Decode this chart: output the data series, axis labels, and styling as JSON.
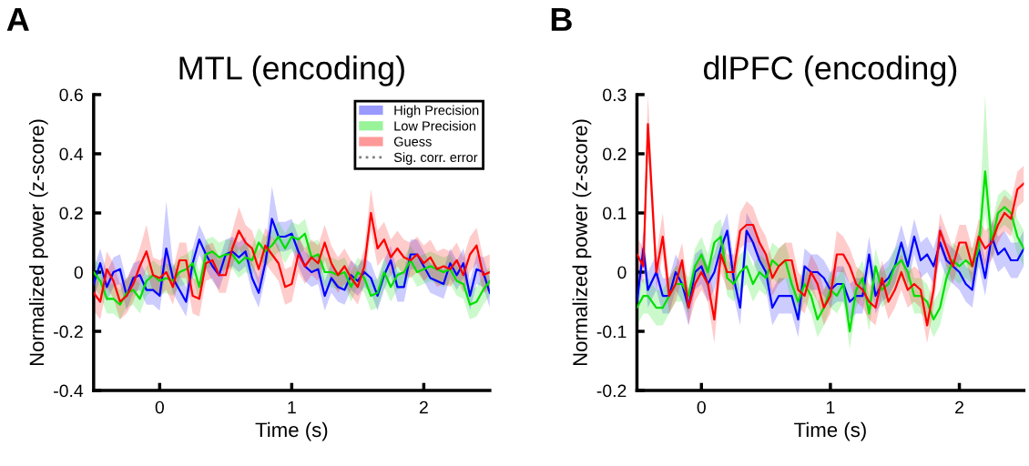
{
  "chart_data": [
    {
      "type": "line",
      "title": "MTL (encoding)",
      "xlabel": "Time (s)",
      "ylabel": "Normalized power (z-score)",
      "annotations": [
        "A"
      ],
      "x": [
        -0.5,
        -0.45,
        -0.4,
        -0.35,
        -0.3,
        -0.25,
        -0.2,
        -0.15,
        -0.1,
        -0.05,
        0,
        0.05,
        0.1,
        0.15,
        0.2,
        0.25,
        0.3,
        0.35,
        0.4,
        0.45,
        0.5,
        0.55,
        0.6,
        0.65,
        0.7,
        0.75,
        0.8,
        0.85,
        0.9,
        0.95,
        1,
        1.05,
        1.1,
        1.15,
        1.2,
        1.25,
        1.3,
        1.35,
        1.4,
        1.45,
        1.5,
        1.55,
        1.6,
        1.65,
        1.7,
        1.75,
        1.8,
        1.85,
        1.9,
        1.95,
        2,
        2.05,
        2.1,
        2.15,
        2.2,
        2.25,
        2.3,
        2.35,
        2.4,
        2.45,
        2.5
      ],
      "xlim": [
        -0.5,
        2.5
      ],
      "xticks": [
        0,
        1,
        2
      ],
      "ylim": [
        -0.4,
        0.6
      ],
      "yticks": [
        -0.4,
        -0.2,
        0,
        0.2,
        0.4,
        0.6
      ],
      "grid": false,
      "legend": "top right",
      "series": [
        {
          "name": "High Precision",
          "color": "#0000ff",
          "values": [
            -0.04,
            0.03,
            -0.05,
            0.0,
            0.01,
            -0.08,
            -0.02,
            -0.01,
            -0.06,
            -0.06,
            -0.08,
            0.08,
            -0.02,
            -0.06,
            -0.1,
            0.03,
            0.11,
            0.06,
            0.02,
            -0.01,
            0.06,
            0.07,
            0.05,
            0.07,
            -0.02,
            -0.07,
            0.03,
            0.18,
            0.12,
            0.12,
            0.13,
            0.07,
            0.02,
            0.0,
            0.01,
            -0.08,
            -0.02,
            -0.05,
            -0.06,
            -0.01,
            -0.03,
            0.0,
            -0.02,
            -0.08,
            -0.01,
            0.04,
            -0.05,
            -0.05,
            0.06,
            0.06,
            0.02,
            -0.02,
            -0.03,
            -0.04,
            0.03,
            -0.01,
            0.03,
            -0.08,
            0.01,
            0.0,
            -0.07
          ],
          "lower": [
            -0.09,
            -0.02,
            -0.1,
            -0.05,
            -0.04,
            -0.13,
            -0.07,
            -0.06,
            -0.11,
            -0.11,
            -0.13,
            0.02,
            -0.07,
            -0.11,
            -0.15,
            -0.02,
            0.06,
            0.01,
            -0.03,
            -0.06,
            0.01,
            0.02,
            0.0,
            0.02,
            -0.07,
            -0.12,
            -0.02,
            0.12,
            0.07,
            0.07,
            0.08,
            0.02,
            -0.03,
            -0.05,
            -0.04,
            -0.13,
            -0.07,
            -0.1,
            -0.11,
            -0.06,
            -0.08,
            -0.05,
            -0.07,
            -0.13,
            -0.06,
            -0.01,
            -0.1,
            -0.1,
            0.01,
            0.01,
            -0.03,
            -0.07,
            -0.08,
            -0.09,
            -0.02,
            -0.06,
            -0.02,
            -0.13,
            -0.04,
            -0.05,
            -0.12
          ],
          "upper": [
            0.01,
            0.08,
            0.0,
            0.05,
            0.06,
            -0.03,
            0.03,
            0.04,
            -0.01,
            -0.01,
            -0.03,
            0.24,
            0.03,
            -0.01,
            -0.05,
            0.08,
            0.16,
            0.11,
            0.07,
            0.04,
            0.11,
            0.12,
            0.1,
            0.12,
            0.03,
            -0.02,
            0.08,
            0.29,
            0.17,
            0.17,
            0.18,
            0.12,
            0.07,
            0.05,
            0.06,
            -0.03,
            0.03,
            0.0,
            -0.01,
            0.04,
            0.02,
            0.05,
            0.03,
            -0.03,
            0.04,
            0.09,
            0.0,
            0.0,
            0.11,
            0.11,
            0.07,
            0.03,
            0.02,
            0.01,
            0.08,
            0.04,
            0.08,
            -0.03,
            0.06,
            0.05,
            -0.02
          ]
        },
        {
          "name": "Low Precision",
          "color": "#00e000",
          "values": [
            0.0,
            -0.03,
            -0.09,
            -0.09,
            -0.11,
            -0.07,
            -0.06,
            -0.09,
            -0.03,
            -0.01,
            -0.03,
            -0.02,
            -0.03,
            0.0,
            0.01,
            0.03,
            -0.05,
            0.06,
            0.07,
            0.05,
            0.06,
            0.06,
            0.03,
            0.05,
            0.04,
            0.1,
            0.07,
            0.09,
            0.12,
            0.08,
            0.12,
            0.11,
            0.13,
            0.05,
            0.06,
            0.0,
            0.0,
            -0.01,
            0.0,
            -0.05,
            0.0,
            -0.02,
            -0.08,
            -0.07,
            0.0,
            -0.05,
            -0.01,
            0.0,
            0.04,
            0.0,
            0.01,
            0.02,
            0.01,
            0.0,
            0.01,
            -0.03,
            -0.04,
            -0.11,
            -0.1,
            -0.06,
            -0.03
          ],
          "lower": [
            -0.05,
            -0.08,
            -0.14,
            -0.14,
            -0.16,
            -0.12,
            -0.11,
            -0.14,
            -0.08,
            -0.06,
            -0.08,
            -0.07,
            -0.08,
            -0.05,
            -0.04,
            -0.02,
            -0.1,
            0.01,
            0.02,
            0.0,
            0.01,
            0.01,
            -0.02,
            0.0,
            -0.01,
            0.05,
            0.02,
            0.04,
            0.07,
            0.03,
            0.07,
            0.06,
            0.08,
            0.0,
            0.01,
            -0.05,
            -0.05,
            -0.06,
            -0.05,
            -0.1,
            -0.05,
            -0.07,
            -0.13,
            -0.12,
            -0.05,
            -0.1,
            -0.06,
            -0.05,
            -0.01,
            -0.05,
            -0.04,
            -0.03,
            -0.04,
            -0.05,
            -0.04,
            -0.08,
            -0.09,
            -0.16,
            -0.15,
            -0.11,
            -0.08
          ],
          "upper": [
            0.05,
            0.02,
            -0.04,
            -0.04,
            -0.06,
            -0.02,
            -0.01,
            -0.04,
            0.02,
            0.04,
            0.02,
            0.03,
            0.02,
            0.05,
            0.06,
            0.08,
            0.0,
            0.11,
            0.12,
            0.1,
            0.11,
            0.11,
            0.08,
            0.1,
            0.09,
            0.15,
            0.12,
            0.14,
            0.17,
            0.13,
            0.17,
            0.16,
            0.18,
            0.1,
            0.11,
            0.05,
            0.05,
            0.04,
            0.05,
            0.0,
            0.05,
            0.03,
            -0.03,
            -0.02,
            0.05,
            0.0,
            0.04,
            0.05,
            0.09,
            0.05,
            0.06,
            0.07,
            0.06,
            0.05,
            0.06,
            0.02,
            0.01,
            -0.06,
            -0.05,
            -0.01,
            0.02
          ]
        },
        {
          "name": "Guess",
          "color": "#ff0000",
          "values": [
            -0.07,
            -0.1,
            0.01,
            -0.03,
            -0.1,
            -0.08,
            -0.04,
            0.02,
            0.07,
            -0.01,
            -0.02,
            0.0,
            -0.05,
            0.04,
            0.04,
            -0.08,
            -0.09,
            0.03,
            0.04,
            -0.01,
            -0.01,
            0.08,
            0.14,
            0.1,
            0.08,
            0.01,
            0.09,
            0.06,
            0.03,
            -0.05,
            -0.04,
            0.06,
            0.02,
            0.05,
            0.03,
            0.1,
            0.03,
            -0.01,
            0.02,
            -0.02,
            -0.05,
            0.02,
            0.2,
            0.08,
            0.11,
            0.05,
            0.08,
            0.05,
            0.04,
            0.06,
            0.03,
            0.05,
            0.01,
            0.02,
            0.01,
            0.04,
            -0.01,
            0.06,
            0.09,
            -0.01,
            0.0
          ],
          "lower": [
            -0.13,
            -0.16,
            -0.05,
            -0.09,
            -0.16,
            -0.14,
            -0.1,
            -0.04,
            0.01,
            -0.07,
            -0.08,
            -0.06,
            -0.11,
            -0.02,
            -0.02,
            -0.14,
            -0.15,
            -0.03,
            -0.02,
            -0.07,
            -0.07,
            0.02,
            0.08,
            0.04,
            0.02,
            -0.05,
            0.03,
            0.0,
            -0.03,
            -0.11,
            -0.1,
            0.0,
            -0.04,
            -0.01,
            -0.03,
            0.04,
            -0.03,
            -0.07,
            -0.04,
            -0.08,
            -0.11,
            -0.04,
            0.14,
            0.02,
            0.05,
            -0.01,
            0.02,
            -0.01,
            -0.02,
            0.0,
            -0.03,
            -0.01,
            -0.05,
            -0.04,
            -0.05,
            -0.02,
            -0.07,
            0.0,
            0.03,
            -0.07,
            -0.06
          ],
          "upper": [
            -0.01,
            -0.04,
            0.07,
            0.03,
            -0.04,
            -0.02,
            0.02,
            0.08,
            0.16,
            0.05,
            0.04,
            0.06,
            0.01,
            0.1,
            0.1,
            -0.02,
            -0.03,
            0.09,
            0.1,
            0.05,
            0.05,
            0.14,
            0.22,
            0.16,
            0.14,
            0.07,
            0.15,
            0.12,
            0.09,
            0.01,
            0.02,
            0.12,
            0.08,
            0.11,
            0.09,
            0.16,
            0.09,
            0.05,
            0.08,
            0.04,
            0.01,
            0.08,
            0.28,
            0.14,
            0.17,
            0.11,
            0.14,
            0.11,
            0.1,
            0.12,
            0.09,
            0.11,
            0.07,
            0.08,
            0.07,
            0.1,
            0.05,
            0.12,
            0.15,
            0.05,
            0.06
          ]
        },
        {
          "name": "Sig. corr. error",
          "color": "#808080",
          "line_style": "dotted",
          "values": [
            null,
            null,
            null,
            null,
            null,
            null,
            null,
            null,
            null,
            null,
            null,
            null,
            null,
            null,
            null,
            null,
            null,
            null,
            null,
            null,
            null,
            null,
            null,
            null,
            null,
            null,
            null,
            null,
            null,
            null,
            null,
            null,
            null,
            null,
            null,
            null,
            null,
            null,
            null,
            null,
            null,
            null,
            null,
            null,
            null,
            null,
            null,
            null,
            null,
            null,
            null,
            null,
            null,
            null,
            null,
            null,
            null,
            null,
            null,
            null,
            null
          ]
        }
      ]
    },
    {
      "type": "line",
      "title": "dlPFC (encoding)",
      "xlabel": "Time (s)",
      "ylabel": "Normalized power (z-score)",
      "annotations": [
        "B"
      ],
      "x": [
        -0.5,
        -0.45,
        -0.415,
        -0.35,
        -0.3,
        -0.25,
        -0.2,
        -0.15,
        -0.1,
        -0.05,
        0,
        0.05,
        0.1,
        0.15,
        0.2,
        0.25,
        0.3,
        0.35,
        0.4,
        0.45,
        0.5,
        0.55,
        0.6,
        0.65,
        0.7,
        0.75,
        0.8,
        0.85,
        0.9,
        0.95,
        1,
        1.05,
        1.1,
        1.15,
        1.2,
        1.25,
        1.3,
        1.35,
        1.4,
        1.45,
        1.5,
        1.55,
        1.6,
        1.65,
        1.7,
        1.75,
        1.8,
        1.85,
        1.9,
        1.95,
        2,
        2.05,
        2.1,
        2.15,
        2.2,
        2.25,
        2.3,
        2.35,
        2.4,
        2.45,
        2.5
      ],
      "xlim": [
        -0.5,
        2.5
      ],
      "xticks": [
        0,
        1,
        2
      ],
      "ylim": [
        -0.2,
        0.3
      ],
      "yticks": [
        -0.2,
        -0.1,
        0,
        0.1,
        0.2,
        0.3
      ],
      "grid": false,
      "series": [
        {
          "color": "#0000ff",
          "values": [
            -0.05,
            0.04,
            -0.03,
            0.0,
            -0.04,
            -0.04,
            0.0,
            -0.02,
            -0.06,
            0.0,
            0.01,
            -0.02,
            0.0,
            0.04,
            0.07,
            -0.01,
            -0.06,
            0.07,
            0.05,
            0.02,
            0.0,
            -0.06,
            -0.04,
            -0.04,
            -0.04,
            -0.08,
            0.01,
            0.0,
            0.0,
            -0.01,
            -0.03,
            -0.02,
            -0.02,
            -0.05,
            -0.04,
            -0.04,
            0.03,
            -0.04,
            -0.02,
            -0.01,
            0.01,
            0.05,
            0.01,
            0.06,
            0.02,
            0.03,
            0.01,
            0.05,
            0.02,
            0.01,
            0.0,
            -0.02,
            -0.03,
            0.04,
            -0.01,
            0.06,
            0.03,
            0.04,
            0.02,
            0.02,
            0.04
          ],
          "lower": [
            -0.08,
            0.01,
            -0.06,
            -0.03,
            -0.07,
            -0.07,
            -0.03,
            -0.05,
            -0.09,
            -0.03,
            -0.02,
            -0.05,
            -0.03,
            0.01,
            0.04,
            -0.04,
            -0.09,
            0.04,
            0.02,
            -0.01,
            -0.03,
            -0.09,
            -0.07,
            -0.07,
            -0.07,
            -0.11,
            -0.02,
            -0.03,
            -0.03,
            -0.04,
            -0.06,
            -0.05,
            -0.05,
            -0.08,
            -0.07,
            -0.07,
            0.0,
            -0.07,
            -0.05,
            -0.04,
            -0.02,
            0.02,
            -0.02,
            0.03,
            -0.01,
            0.0,
            -0.02,
            0.02,
            -0.01,
            -0.02,
            -0.03,
            -0.05,
            -0.06,
            0.01,
            -0.04,
            0.03,
            0.0,
            0.01,
            -0.01,
            -0.01,
            0.01
          ],
          "upper": [
            -0.02,
            0.07,
            0.0,
            0.03,
            -0.01,
            -0.01,
            0.03,
            0.01,
            -0.03,
            0.03,
            0.04,
            0.01,
            0.03,
            0.07,
            0.1,
            0.02,
            -0.03,
            0.1,
            0.08,
            0.05,
            0.03,
            -0.03,
            -0.01,
            -0.01,
            -0.01,
            -0.05,
            0.04,
            0.03,
            0.03,
            0.02,
            0.0,
            0.01,
            0.01,
            -0.02,
            -0.01,
            -0.01,
            0.06,
            -0.01,
            0.01,
            0.02,
            0.04,
            0.08,
            0.04,
            0.09,
            0.05,
            0.06,
            0.04,
            0.08,
            0.05,
            0.04,
            0.03,
            0.01,
            0.0,
            0.07,
            0.02,
            0.09,
            0.06,
            0.07,
            0.05,
            0.05,
            0.07
          ]
        },
        {
          "color": "#00e000",
          "values": [
            -0.06,
            -0.04,
            -0.04,
            -0.06,
            -0.06,
            -0.04,
            -0.02,
            -0.02,
            -0.04,
            0.01,
            0.03,
            0.0,
            0.05,
            0.06,
            -0.01,
            -0.02,
            0.0,
            0.01,
            -0.02,
            0.0,
            -0.01,
            0.02,
            0.01,
            0.02,
            -0.02,
            -0.05,
            -0.02,
            -0.04,
            -0.08,
            -0.06,
            -0.03,
            -0.04,
            -0.02,
            -0.1,
            -0.03,
            -0.01,
            -0.07,
            0.01,
            -0.03,
            -0.02,
            0.01,
            0.02,
            0.0,
            -0.04,
            -0.04,
            -0.05,
            -0.08,
            -0.06,
            -0.01,
            0.02,
            0.01,
            0.02,
            0.01,
            0.04,
            0.17,
            0.05,
            0.1,
            0.11,
            0.1,
            0.06,
            0.04
          ],
          "lower": [
            -0.09,
            -0.07,
            -0.07,
            -0.09,
            -0.09,
            -0.07,
            -0.05,
            -0.05,
            -0.07,
            -0.02,
            0.0,
            -0.03,
            0.02,
            0.03,
            -0.04,
            -0.05,
            -0.03,
            -0.02,
            -0.05,
            -0.03,
            -0.04,
            -0.01,
            -0.02,
            -0.01,
            -0.05,
            -0.08,
            -0.05,
            -0.07,
            -0.11,
            -0.09,
            -0.06,
            -0.07,
            -0.05,
            -0.13,
            -0.06,
            -0.04,
            -0.1,
            -0.02,
            -0.06,
            -0.05,
            -0.02,
            -0.01,
            -0.03,
            -0.07,
            -0.07,
            -0.08,
            -0.11,
            -0.09,
            -0.04,
            -0.01,
            -0.02,
            -0.01,
            -0.02,
            0.01,
            0.1,
            0.02,
            0.07,
            0.08,
            0.07,
            0.03,
            0.01
          ],
          "upper": [
            -0.03,
            -0.01,
            -0.01,
            -0.03,
            -0.03,
            -0.01,
            0.01,
            0.01,
            -0.01,
            0.04,
            0.06,
            0.03,
            0.08,
            0.09,
            0.02,
            0.01,
            0.03,
            0.04,
            0.01,
            0.03,
            0.02,
            0.05,
            0.04,
            0.05,
            0.01,
            -0.02,
            0.01,
            -0.01,
            -0.05,
            -0.03,
            0.0,
            -0.01,
            0.01,
            -0.07,
            0.0,
            0.02,
            -0.04,
            0.04,
            0.0,
            0.01,
            0.04,
            0.05,
            0.03,
            -0.01,
            -0.01,
            -0.02,
            -0.05,
            -0.03,
            0.02,
            0.05,
            0.04,
            0.05,
            0.04,
            0.07,
            0.3,
            0.08,
            0.13,
            0.14,
            0.13,
            0.09,
            0.07
          ]
        },
        {
          "color": "#ff0000",
          "values": [
            0.03,
            0.01,
            0.25,
            0.0,
            0.06,
            -0.04,
            -0.02,
            0.02,
            -0.06,
            -0.02,
            0.0,
            -0.02,
            -0.08,
            0.03,
            0.0,
            0.0,
            0.07,
            0.08,
            0.08,
            0.05,
            0.03,
            -0.01,
            0.01,
            0.02,
            0.02,
            -0.03,
            -0.04,
            0.0,
            -0.02,
            -0.06,
            -0.04,
            0.03,
            0.03,
            0.01,
            -0.02,
            -0.03,
            -0.05,
            -0.06,
            -0.01,
            -0.05,
            -0.03,
            0.0,
            -0.03,
            -0.02,
            -0.03,
            -0.09,
            -0.03,
            0.07,
            0.04,
            0.01,
            0.05,
            0.05,
            0.01,
            0.06,
            0.04,
            0.05,
            0.08,
            0.1,
            0.09,
            0.14,
            0.15
          ],
          "lower": [
            0.0,
            -0.02,
            0.2,
            -0.03,
            0.03,
            -0.07,
            -0.05,
            -0.01,
            -0.09,
            -0.05,
            -0.03,
            -0.05,
            -0.12,
            0.0,
            -0.03,
            -0.03,
            0.04,
            0.05,
            0.05,
            0.02,
            0.0,
            -0.04,
            -0.02,
            -0.01,
            -0.01,
            -0.06,
            -0.07,
            -0.03,
            -0.05,
            -0.09,
            -0.07,
            0.0,
            0.0,
            -0.02,
            -0.05,
            -0.06,
            -0.08,
            -0.09,
            -0.04,
            -0.08,
            -0.06,
            -0.03,
            -0.06,
            -0.05,
            -0.06,
            -0.12,
            -0.06,
            0.04,
            0.01,
            -0.02,
            0.02,
            0.02,
            -0.02,
            0.03,
            0.01,
            0.02,
            0.05,
            0.07,
            0.06,
            0.11,
            0.12
          ],
          "upper": [
            0.06,
            0.04,
            0.3,
            0.03,
            0.1,
            -0.01,
            0.01,
            0.05,
            -0.03,
            0.01,
            0.03,
            0.01,
            -0.04,
            0.06,
            0.03,
            0.03,
            0.1,
            0.12,
            0.11,
            0.08,
            0.06,
            0.02,
            0.04,
            0.05,
            0.05,
            0.0,
            -0.01,
            0.03,
            0.01,
            -0.03,
            -0.01,
            0.07,
            0.06,
            0.04,
            0.01,
            0.0,
            -0.02,
            -0.03,
            0.02,
            -0.02,
            0.0,
            0.03,
            0.0,
            0.01,
            0.0,
            -0.06,
            0.0,
            0.1,
            0.07,
            0.04,
            0.08,
            0.08,
            0.04,
            0.09,
            0.07,
            0.08,
            0.11,
            0.13,
            0.12,
            0.17,
            0.18
          ]
        }
      ]
    }
  ]
}
